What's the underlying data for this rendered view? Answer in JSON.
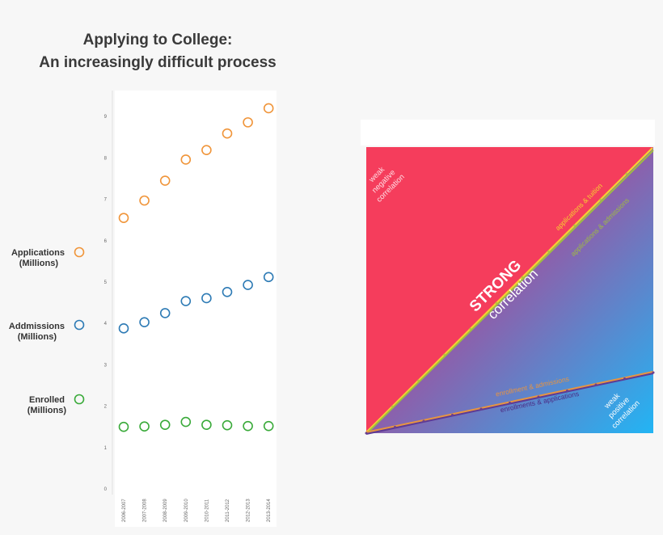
{
  "title_lines": [
    "Applying to College:",
    "An increasingly difficult process"
  ],
  "chart_data": [
    {
      "type": "scatter",
      "categories": [
        "2006-2007",
        "2007-2008",
        "2008-2009",
        "2009-2010",
        "2010-2011",
        "2011-2012",
        "2012-2013",
        "2013-2014"
      ],
      "yticks": [
        "0",
        "1",
        "2",
        "3",
        "4",
        "5",
        "6",
        "7",
        "8",
        "9"
      ],
      "ylim": [
        0,
        9.6
      ],
      "grid": false,
      "legend_position": "left",
      "series": [
        {
          "name": [
            "Applications",
            "(Millions)"
          ],
          "color": "#f0953a",
          "values": [
            6.55,
            6.97,
            7.45,
            7.96,
            8.19,
            8.59,
            8.86,
            9.2
          ]
        },
        {
          "name": [
            "Addmissions",
            "(Millions)"
          ],
          "color": "#2e7bb5",
          "values": [
            3.88,
            4.03,
            4.25,
            4.54,
            4.61,
            4.76,
            4.93,
            5.12
          ]
        },
        {
          "name": [
            "Enrolled",
            "(Millions)"
          ],
          "color": "#3aaa3a",
          "values": [
            1.5,
            1.51,
            1.55,
            1.62,
            1.55,
            1.54,
            1.52,
            1.52
          ]
        }
      ]
    },
    {
      "type": "diagram",
      "region_labels": {
        "top_left": [
          "weak",
          "negative",
          "correlation"
        ],
        "center": [
          "STRONG",
          "correlation"
        ],
        "bottom_right": [
          "weak",
          "positive",
          "correlation"
        ]
      },
      "line_labels": {
        "applications_tuition": "applications & tuition",
        "applications_admissions": "applications & admissions",
        "enrollment_admissions": "enrollment & admissions",
        "enrollments_applications": "enrollments & applications"
      },
      "colors": {
        "red": "#f53d5c",
        "blue": "#27b0f2",
        "purple": "#8c63ae",
        "yellow": "#f7d230",
        "green": "#9fbe3f",
        "orange": "#e69442",
        "violet": "#5d3a95"
      }
    }
  ]
}
